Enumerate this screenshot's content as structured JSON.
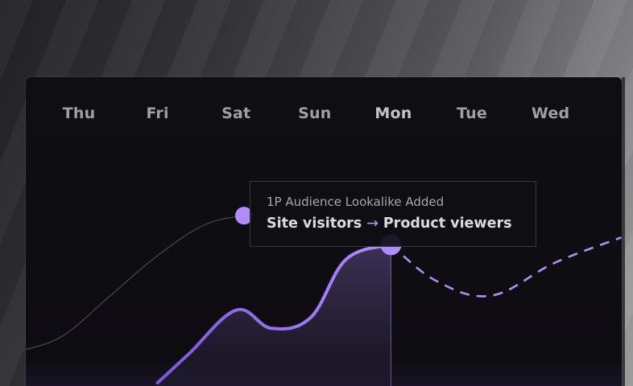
{
  "colors": {
    "accent": "#b08cff",
    "accent_dark": "#7e55e0",
    "muted_line": "#3c3a48",
    "panel_bg": "#0f0e13",
    "day_label": "#a19ea8"
  },
  "chart_data": {
    "type": "line",
    "categories": [
      "Thu",
      "Fri",
      "Sat",
      "Sun",
      "Mon",
      "Tue",
      "Wed"
    ],
    "active_category": "Mon",
    "grid": false,
    "legend": "none",
    "ylim": [
      0,
      100
    ],
    "series": [
      {
        "style": "faded",
        "points": [
          [
            -0.7,
            10
          ],
          [
            -0.2,
            18
          ],
          [
            0.4,
            40
          ],
          [
            1.0,
            62
          ],
          [
            1.6,
            79
          ],
          [
            2.1,
            84
          ]
        ]
      },
      {
        "style": "highlight",
        "points": [
          [
            1.0,
            -8
          ],
          [
            1.4,
            8
          ],
          [
            2.0,
            32
          ],
          [
            2.45,
            22
          ],
          [
            2.95,
            28
          ],
          [
            3.4,
            60
          ],
          [
            3.97,
            68
          ]
        ]
      },
      {
        "style": "dashed-forecast",
        "points": [
          [
            3.97,
            68
          ],
          [
            4.55,
            48
          ],
          [
            5.25,
            40
          ],
          [
            6.05,
            58
          ],
          [
            6.9,
            72
          ]
        ]
      }
    ],
    "markers": [
      {
        "x": 2.1,
        "y": 84
      },
      {
        "x": 3.97,
        "y": 68
      }
    ],
    "annotation": {
      "title": "1P Audience Lookalike Added",
      "from": "Site visitors",
      "arrow": "→",
      "to": "Product viewers"
    }
  }
}
